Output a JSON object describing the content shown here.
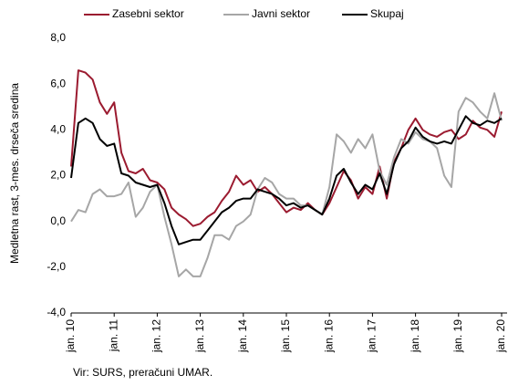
{
  "chart_data": {
    "type": "line",
    "y_label": "Medletna rast, 3-mes. drseča sredina",
    "source": "Vir: SURS, preračuni UMAR.",
    "categories": [
      "jan. 10",
      null,
      null,
      null,
      null,
      null,
      "jan. 11",
      null,
      null,
      null,
      null,
      null,
      "jan. 12",
      null,
      null,
      null,
      null,
      null,
      "jan. 13",
      null,
      null,
      null,
      null,
      null,
      "jan. 14",
      null,
      null,
      null,
      null,
      null,
      "jan. 15",
      null,
      null,
      null,
      null,
      null,
      "jan. 16",
      null,
      null,
      null,
      null,
      null,
      "jan. 17",
      null,
      null,
      null,
      null,
      null,
      "jan. 18",
      null,
      null,
      null,
      null,
      null,
      "jan. 19",
      null,
      null,
      null,
      null,
      null,
      "jan. 20"
    ],
    "series": [
      {
        "name": "Zasebni sektor",
        "color": "#9b1b30",
        "values": [
          2.4,
          6.6,
          6.5,
          6.2,
          5.2,
          4.7,
          5.2,
          3.0,
          2.2,
          2.1,
          2.3,
          1.8,
          1.7,
          1.4,
          0.6,
          0.3,
          0.1,
          -0.2,
          -0.1,
          0.2,
          0.4,
          0.9,
          1.3,
          2.0,
          1.6,
          1.8,
          1.3,
          1.5,
          1.2,
          0.8,
          0.4,
          0.6,
          0.5,
          0.8,
          0.5,
          0.3,
          0.8,
          1.5,
          2.2,
          1.8,
          1.0,
          1.5,
          1.2,
          2.4,
          1.0,
          2.6,
          3.2,
          4.0,
          4.5,
          4.0,
          3.8,
          3.7,
          3.9,
          4.0,
          3.6,
          3.8,
          4.4,
          4.1,
          4.0,
          3.7,
          4.8
        ]
      },
      {
        "name": "Javni sektor",
        "color": "#a6a6a6",
        "values": [
          0.0,
          0.5,
          0.4,
          1.2,
          1.4,
          1.1,
          1.1,
          1.2,
          1.7,
          0.2,
          0.6,
          1.3,
          1.6,
          0.2,
          -1.0,
          -2.4,
          -2.1,
          -2.4,
          -2.4,
          -1.6,
          -0.6,
          -0.6,
          -0.8,
          -0.2,
          0.0,
          0.3,
          1.4,
          1.9,
          1.7,
          1.2,
          1.0,
          1.0,
          0.7,
          0.7,
          0.5,
          0.3,
          1.5,
          3.8,
          3.5,
          3.0,
          3.6,
          3.2,
          3.8,
          2.2,
          1.6,
          2.8,
          3.6,
          3.4,
          3.9,
          3.6,
          3.5,
          3.2,
          2.0,
          1.5,
          4.8,
          5.4,
          5.2,
          4.8,
          4.5,
          5.6,
          4.4
        ]
      },
      {
        "name": "Skupaj",
        "color": "#000000",
        "values": [
          1.9,
          4.3,
          4.5,
          4.3,
          3.6,
          3.3,
          3.4,
          2.1,
          2.0,
          1.7,
          1.6,
          1.5,
          1.6,
          0.8,
          -0.2,
          -1.0,
          -0.9,
          -0.8,
          -0.8,
          -0.4,
          0.0,
          0.4,
          0.6,
          0.9,
          1.0,
          1.0,
          1.4,
          1.3,
          1.2,
          1.0,
          0.7,
          0.8,
          0.6,
          0.7,
          0.5,
          0.3,
          1.0,
          2.0,
          2.3,
          1.7,
          1.2,
          1.6,
          1.4,
          2.1,
          1.2,
          2.5,
          3.2,
          3.5,
          4.1,
          3.7,
          3.5,
          3.4,
          3.5,
          3.4,
          4.0,
          4.6,
          4.3,
          4.2,
          4.4,
          4.3,
          4.5
        ]
      }
    ],
    "ylim": [
      -4,
      8
    ],
    "yticks": [
      {
        "value": -4,
        "label": "-4,0"
      },
      {
        "value": -2,
        "label": "-2,0"
      },
      {
        "value": 0,
        "label": "0,0"
      },
      {
        "value": 2,
        "label": "2,0"
      },
      {
        "value": 4,
        "label": "4,0"
      },
      {
        "value": 6,
        "label": "6,0"
      },
      {
        "value": 8,
        "label": "8,0"
      }
    ],
    "grid": false
  }
}
